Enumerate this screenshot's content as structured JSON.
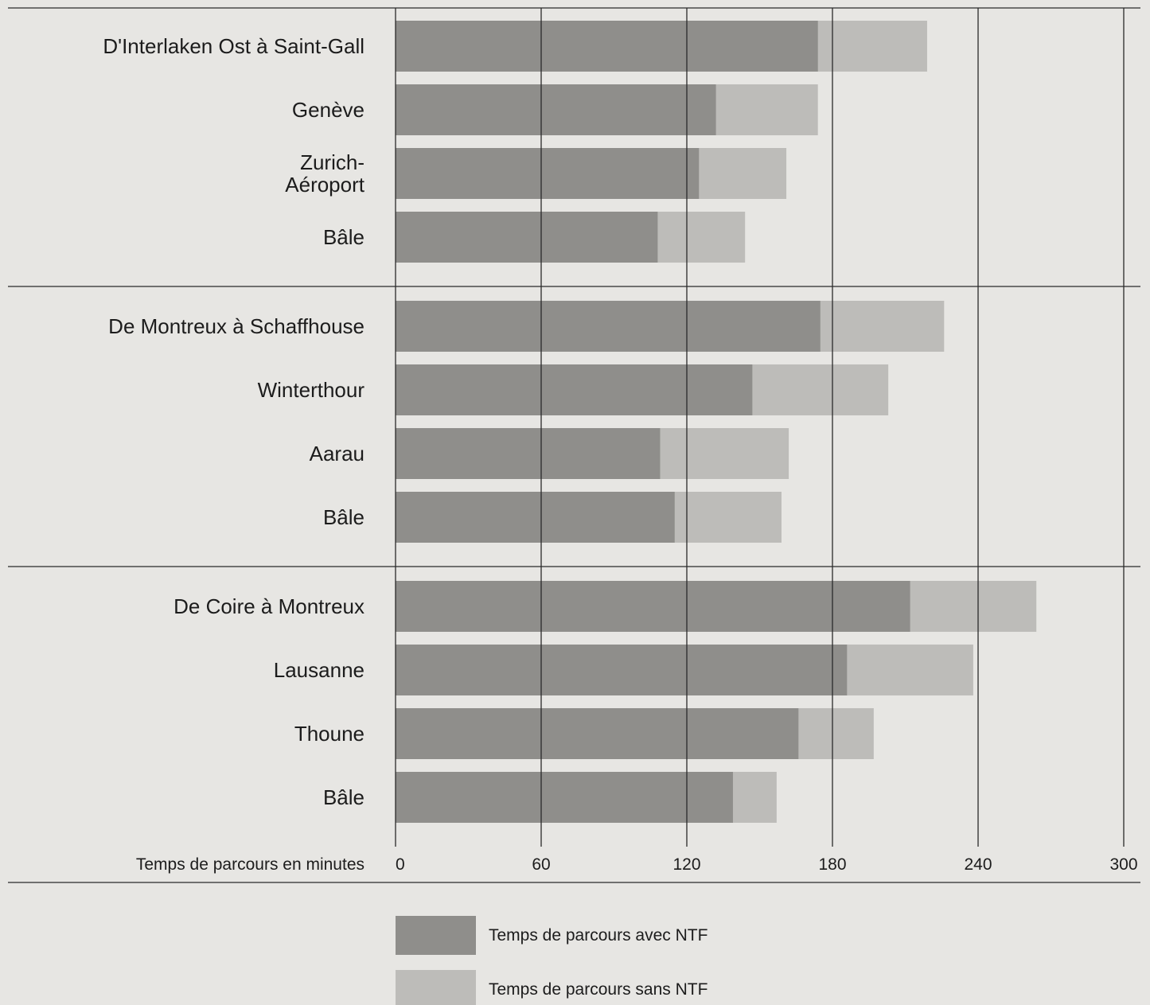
{
  "chart_data": {
    "type": "bar",
    "orientation": "horizontal",
    "stacked_overlay": true,
    "xlabel": "Temps de parcours en minutes",
    "xlim": [
      0,
      300
    ],
    "x_ticks": [
      "0",
      "60",
      "120",
      "180",
      "240",
      "300"
    ],
    "grid": true,
    "legend_position": "bottom",
    "colors": {
      "with_ntf": "#8f8e8b",
      "without_ntf": "#bdbcb9",
      "background": "#e7e6e3"
    },
    "series_labels": [
      "Temps de parcours avec NTF",
      "Temps de parcours sans NTF"
    ],
    "groups": [
      {
        "items": [
          {
            "label": "D'Interlaken Ost à Saint-Gall",
            "with_ntf": 174,
            "without_ntf": 219
          },
          {
            "label": "Genève",
            "with_ntf": 132,
            "without_ntf": 174
          },
          {
            "label": "Zurich-\nAéroport",
            "with_ntf": 125,
            "without_ntf": 161
          },
          {
            "label": "Bâle",
            "with_ntf": 108,
            "without_ntf": 144
          }
        ]
      },
      {
        "items": [
          {
            "label": "De Montreux à Schaffhouse",
            "with_ntf": 175,
            "without_ntf": 226
          },
          {
            "label": "Winterthour",
            "with_ntf": 147,
            "without_ntf": 203
          },
          {
            "label": "Aarau",
            "with_ntf": 109,
            "without_ntf": 162
          },
          {
            "label": "Bâle",
            "with_ntf": 115,
            "without_ntf": 159
          }
        ]
      },
      {
        "items": [
          {
            "label": "De Coire à Montreux",
            "with_ntf": 212,
            "without_ntf": 264
          },
          {
            "label": "Lausanne",
            "with_ntf": 186,
            "without_ntf": 238
          },
          {
            "label": "Thoune",
            "with_ntf": 166,
            "without_ntf": 197
          },
          {
            "label": "Bâle",
            "with_ntf": 139,
            "without_ntf": 157
          }
        ]
      }
    ]
  }
}
